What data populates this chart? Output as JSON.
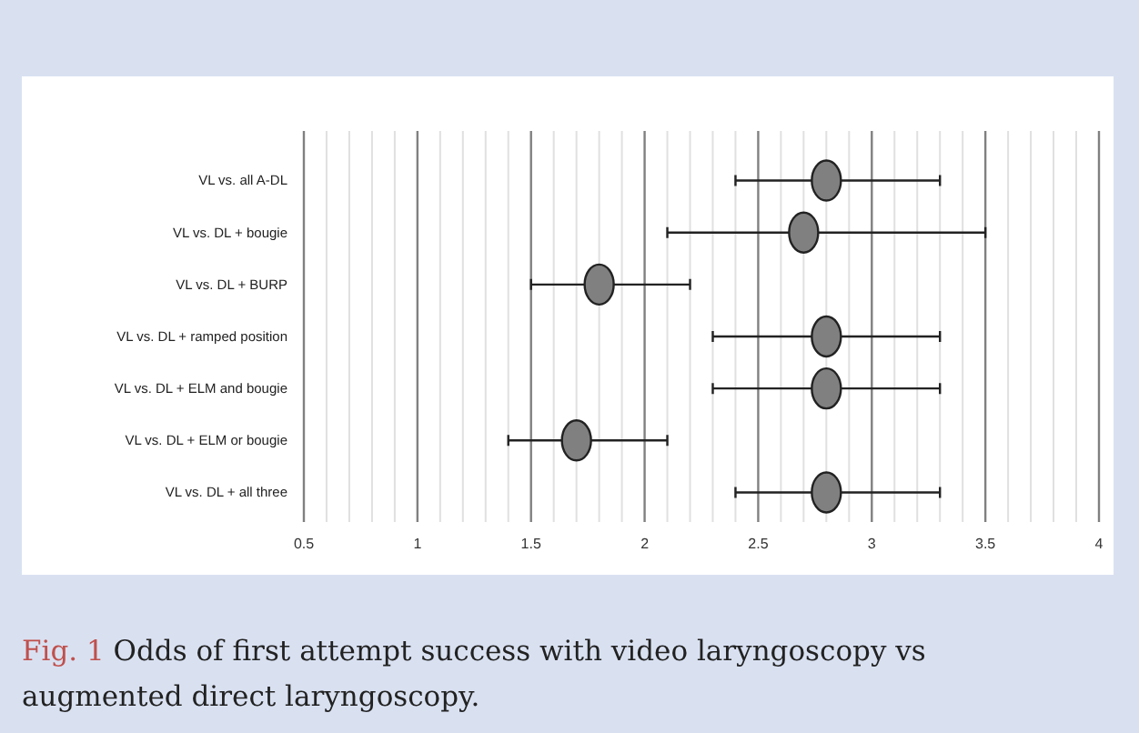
{
  "chart_data": {
    "type": "scatter",
    "orientation": "horizontal",
    "categories": [
      "VL vs. all A-DL",
      "VL vs. DL + bougie",
      "VL vs. DL + BURP",
      "VL vs. DL + ramped position",
      "VL vs. DL + ELM and bougie",
      "VL vs. DL + ELM or bougie",
      "VL vs. DL + all three"
    ],
    "color": "#808080",
    "values": [
      2.8,
      2.7,
      1.8,
      2.8,
      2.8,
      1.7,
      2.8
    ],
    "errors": [
      [
        2.4,
        3.3
      ],
      [
        2.1,
        3.5
      ],
      [
        1.5,
        2.2
      ],
      [
        2.3,
        3.3
      ],
      [
        2.3,
        3.3
      ],
      [
        1.4,
        2.1
      ],
      [
        2.4,
        3.3
      ]
    ],
    "xlim": [
      0.5,
      4
    ],
    "xticks": [
      0.5,
      {
        "value": 0.6,
        "label": null
      },
      {
        "value": 0.7,
        "label": null
      },
      {
        "value": 0.8,
        "label": null
      },
      {
        "value": 0.9,
        "label": null
      },
      1,
      {
        "value": 1.1,
        "label": null
      },
      {
        "value": 1.2,
        "label": null
      },
      {
        "value": 1.3,
        "label": null
      },
      {
        "value": 1.4,
        "label": null
      },
      1.5,
      {
        "value": 1.6,
        "label": null
      },
      {
        "value": 1.7,
        "label": null
      },
      {
        "value": 1.8,
        "label": null
      },
      {
        "value": 1.9,
        "label": null
      },
      2,
      {
        "value": 2.1,
        "label": null
      },
      {
        "value": 2.2,
        "label": null
      },
      {
        "value": 2.3,
        "label": null
      },
      {
        "value": 2.4,
        "label": null
      },
      2.5,
      {
        "value": 2.6,
        "label": null
      },
      {
        "value": 2.7,
        "label": null
      },
      {
        "value": 2.8,
        "label": null
      },
      {
        "value": 2.9,
        "label": null
      },
      3,
      {
        "value": 3.1,
        "label": null
      },
      {
        "value": 3.2,
        "label": null
      },
      {
        "value": 3.3,
        "label": null
      },
      {
        "value": 3.4,
        "label": null
      },
      3.5,
      {
        "value": 3.6,
        "label": null
      },
      {
        "value": 3.7,
        "label": null
      },
      {
        "value": 3.8,
        "label": null
      },
      {
        "value": 3.9,
        "label": null
      },
      4
    ],
    "grid": "x",
    "marker": "circle",
    "annotations": [
      "Fig. 1",
      "Odds of first attempt success with video laryngoscopy vs augmented direct laryngoscopy."
    ]
  }
}
